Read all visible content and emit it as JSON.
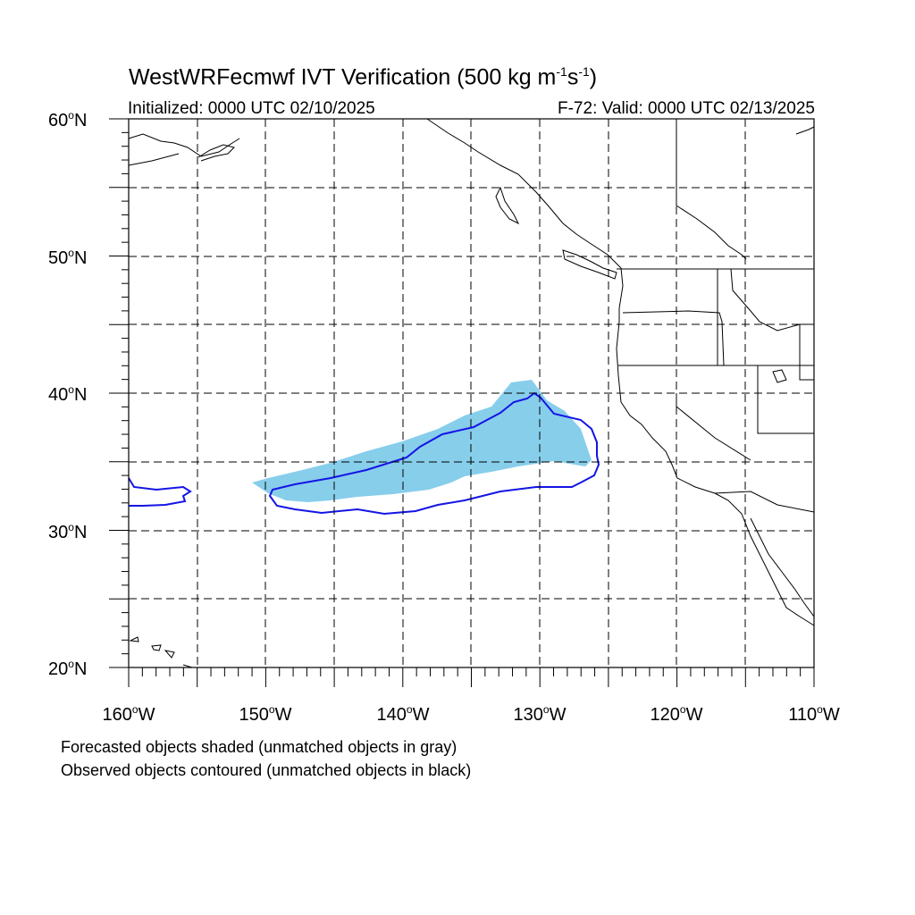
{
  "title": {
    "main": "WestWRFecmwf IVT Verification (500 kg m",
    "exp1": "-1",
    "mid": "s",
    "exp2": "-1",
    "end": ")"
  },
  "initialized": "Initialized: 0000 UTC 02/10/2025",
  "valid": "F-72: Valid: 0000 UTC 02/13/2025",
  "lat_labels": [
    {
      "value": "60",
      "hemi": "N"
    },
    {
      "value": "50",
      "hemi": "N"
    },
    {
      "value": "40",
      "hemi": "N"
    },
    {
      "value": "30",
      "hemi": "N"
    },
    {
      "value": "20",
      "hemi": "N"
    }
  ],
  "lon_labels": [
    {
      "value": "160",
      "hemi": "W"
    },
    {
      "value": "150",
      "hemi": "W"
    },
    {
      "value": "140",
      "hemi": "W"
    },
    {
      "value": "130",
      "hemi": "W"
    },
    {
      "value": "120",
      "hemi": "W"
    },
    {
      "value": "110",
      "hemi": "W"
    }
  ],
  "notes": [
    "Forecasted objects shaded (unmatched objects in gray)",
    "Observed objects contoured (unmatched objects in black)"
  ],
  "colors": {
    "forecast_fill": "#87ceeb",
    "observed_contour": "#1414e6",
    "coastline": "#000000",
    "grid": "#000000"
  },
  "map": {
    "lon_range": [
      -160,
      -110
    ],
    "lat_range": [
      20,
      60
    ],
    "gridline_style": "dashed",
    "grid_lon_step": 5,
    "grid_lat_step": 5
  }
}
